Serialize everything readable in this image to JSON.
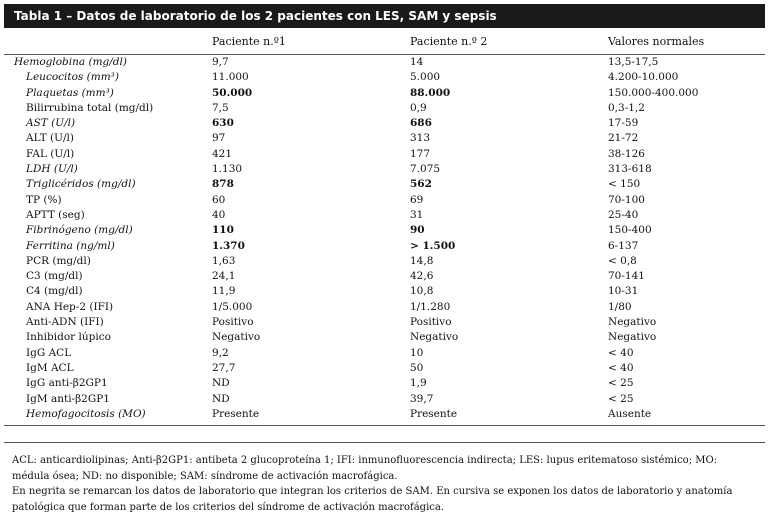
{
  "title": "Tabla 1 – Datos de laboratorio de los 2 pacientes con LES, SAM y sepsis",
  "columns": [
    "",
    "Paciente n.º1",
    "Paciente n.º 2",
    "Valores normales"
  ],
  "rows": [
    {
      "label": "Hemoglobina (mg/dl)",
      "indent": false,
      "label_italic": true,
      "v1": "9,7",
      "v2": "14",
      "normal": "13,5-17,5",
      "v1_bold": false,
      "v2_bold": false
    },
    {
      "label": "Leucocitos (mm³)",
      "indent": true,
      "label_italic": true,
      "v1": "11.000",
      "v2": "5.000",
      "normal": "4.200-10.000",
      "v1_bold": false,
      "v2_bold": false
    },
    {
      "label": "Plaquetas (mm³)",
      "indent": true,
      "label_italic": true,
      "v1": "50.000",
      "v2": "88.000",
      "normal": "150.000-400.000",
      "v1_bold": true,
      "v2_bold": true
    },
    {
      "label": "Bilirrubina total (mg/dl)",
      "indent": true,
      "label_italic": false,
      "v1": "7,5",
      "v2": "0,9",
      "normal": "0,3-1,2",
      "v1_bold": false,
      "v2_bold": false
    },
    {
      "label": "AST (U/l)",
      "indent": true,
      "label_italic": true,
      "v1": "630",
      "v2": "686",
      "normal": "17-59",
      "v1_bold": true,
      "v2_bold": true
    },
    {
      "label": "ALT (U/l)",
      "indent": true,
      "label_italic": false,
      "v1": "97",
      "v2": "313",
      "normal": "21-72",
      "v1_bold": false,
      "v2_bold": false
    },
    {
      "label": "FAL (U/l)",
      "indent": true,
      "label_italic": false,
      "v1": "421",
      "v2": "177",
      "normal": "38-126",
      "v1_bold": false,
      "v2_bold": false
    },
    {
      "label": "LDH (U/l)",
      "indent": true,
      "label_italic": true,
      "v1": "1.130",
      "v2": "7.075",
      "normal": "313-618",
      "v1_bold": false,
      "v2_bold": false
    },
    {
      "label": "Triglicéridos (mg/dl)",
      "indent": true,
      "label_italic": true,
      "v1": "878",
      "v2": "562",
      "normal": "< 150",
      "v1_bold": true,
      "v2_bold": true
    },
    {
      "label": "TP (%)",
      "indent": true,
      "label_italic": false,
      "v1": "60",
      "v2": "69",
      "normal": "70-100",
      "v1_bold": false,
      "v2_bold": false
    },
    {
      "label": "APTT (seg)",
      "indent": true,
      "label_italic": false,
      "v1": "40",
      "v2": "31",
      "normal": "25-40",
      "v1_bold": false,
      "v2_bold": false
    },
    {
      "label": "Fibrinógeno (mg/dl)",
      "indent": true,
      "label_italic": true,
      "v1": "110",
      "v2": "90",
      "normal": "150-400",
      "v1_bold": true,
      "v2_bold": true
    },
    {
      "label": "Ferritina (ng/ml)",
      "indent": true,
      "label_italic": true,
      "v1": "1.370",
      "v2": "> 1.500",
      "normal": "6-137",
      "v1_bold": true,
      "v2_bold": true
    },
    {
      "label": "PCR (mg/dl)",
      "indent": true,
      "label_italic": false,
      "v1": "1,63",
      "v2": "14,8",
      "normal": "< 0,8",
      "v1_bold": false,
      "v2_bold": false
    },
    {
      "label": "C3 (mg/dl)",
      "indent": true,
      "label_italic": false,
      "v1": "24,1",
      "v2": "42,6",
      "normal": "70-141",
      "v1_bold": false,
      "v2_bold": false
    },
    {
      "label": "C4 (mg/dl)",
      "indent": true,
      "label_italic": false,
      "v1": "11,9",
      "v2": "10,8",
      "normal": "10-31",
      "v1_bold": false,
      "v2_bold": false
    },
    {
      "label": "ANA Hep-2 (IFI)",
      "indent": true,
      "label_italic": false,
      "v1": "1/5.000",
      "v2": "1/1.280",
      "normal": "1/80",
      "v1_bold": false,
      "v2_bold": false
    },
    {
      "label": "Anti-ADN (IFI)",
      "indent": true,
      "label_italic": false,
      "v1": "Positivo",
      "v2": "Positivo",
      "normal": "Negativo",
      "v1_bold": false,
      "v2_bold": false
    },
    {
      "label": "Inhibidor lúpico",
      "indent": true,
      "label_italic": false,
      "v1": "Negativo",
      "v2": "Negativo",
      "normal": "Negativo",
      "v1_bold": false,
      "v2_bold": false
    },
    {
      "label": "IgG ACL",
      "indent": true,
      "label_italic": false,
      "v1": "9,2",
      "v2": "10",
      "normal": "< 40",
      "v1_bold": false,
      "v2_bold": false
    },
    {
      "label": "IgM ACL",
      "indent": true,
      "label_italic": false,
      "v1": "27,7",
      "v2": "50",
      "normal": "< 40",
      "v1_bold": false,
      "v2_bold": false
    },
    {
      "label": "IgG anti-β2GP1",
      "indent": true,
      "label_italic": false,
      "v1": "ND",
      "v2": "1,9",
      "normal": "< 25",
      "v1_bold": false,
      "v2_bold": false
    },
    {
      "label": "IgM anti-β2GP1",
      "indent": true,
      "label_italic": false,
      "v1": "ND",
      "v2": "39,7",
      "normal": "< 25",
      "v1_bold": false,
      "v2_bold": false
    },
    {
      "label": "Hemofagocitosis (MO)",
      "indent": true,
      "label_italic": true,
      "v1": "Presente",
      "v2": "Presente",
      "normal": "Ausente",
      "v1_bold": false,
      "v2_bold": false
    }
  ],
  "footnotes": [
    "ACL: anticardiolipinas; Anti-β2GP1: antibeta 2 glucoproteína 1; IFI: inmunofluorescencia indirecta; LES: lupus eritematoso sistémico; MO: médula ósea; ND: no disponible; SAM: síndrome de activación macrofágica.",
    "En negrita se remarcan los datos de laboratorio que integran los criterios de SAM. En cursiva se exponen los datos de laboratorio y anatomía patológica que forman parte de los criterios del síndrome de activación macrofágica."
  ]
}
